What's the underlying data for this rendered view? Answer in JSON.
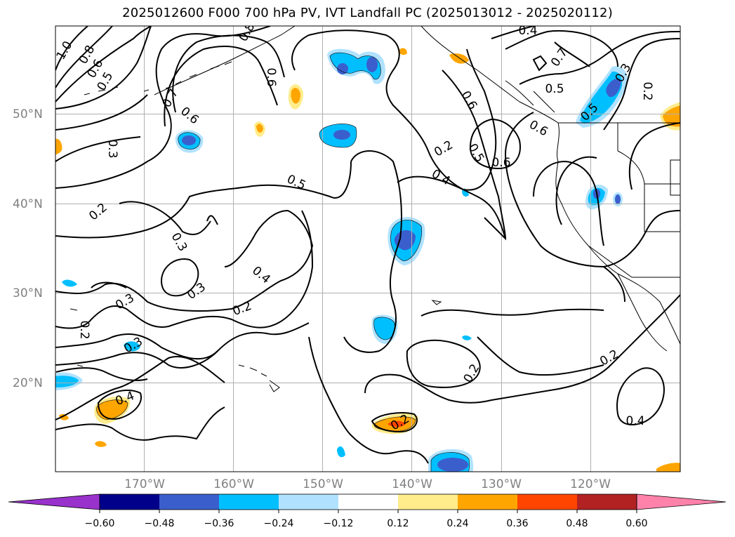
{
  "title": "2025012600 F000 700 hPa PV, IVT Landfall PC (2025013012 - 2025020112)",
  "map": {
    "lon_ticks": [
      "170°W",
      "160°W",
      "150°W",
      "140°W",
      "130°W",
      "120°W"
    ],
    "lat_ticks": [
      "50°N",
      "40°N",
      "30°N",
      "20°N"
    ],
    "tick_color": "#808080",
    "gridline_color": "#b0b0b0",
    "contour_color": "#000000",
    "contour_labels": [
      "1.0",
      "0.8",
      "0.6",
      "0.5",
      "0.8",
      "0.7",
      "0.6",
      "0.6",
      "0.4",
      "0.7",
      "0.5",
      "0.6",
      "0.3",
      "0.2",
      "0.5",
      "0.6",
      "0.4",
      "0.5",
      "0.6",
      "0.5",
      "0.2",
      "0.3",
      "0.3",
      "0.2",
      "0.4",
      "0.3",
      "0.2",
      "0.3",
      "0.2",
      "0.3",
      "0.4",
      "0.2",
      "0.2",
      "0.2",
      "0.4"
    ]
  },
  "colorbar": {
    "tick_labels": [
      "−0.60",
      "−0.48",
      "−0.36",
      "−0.24",
      "−0.12",
      "0.12",
      "0.24",
      "0.36",
      "0.48",
      "0.60"
    ],
    "colors": [
      "#9932cc",
      "#00008b",
      "#3a5fcd",
      "#00bfff",
      "#b0e2ff",
      "#ffffff",
      "#ffec8b",
      "#ffa500",
      "#ff4500",
      "#b22222",
      "#ff82ab"
    ]
  }
}
